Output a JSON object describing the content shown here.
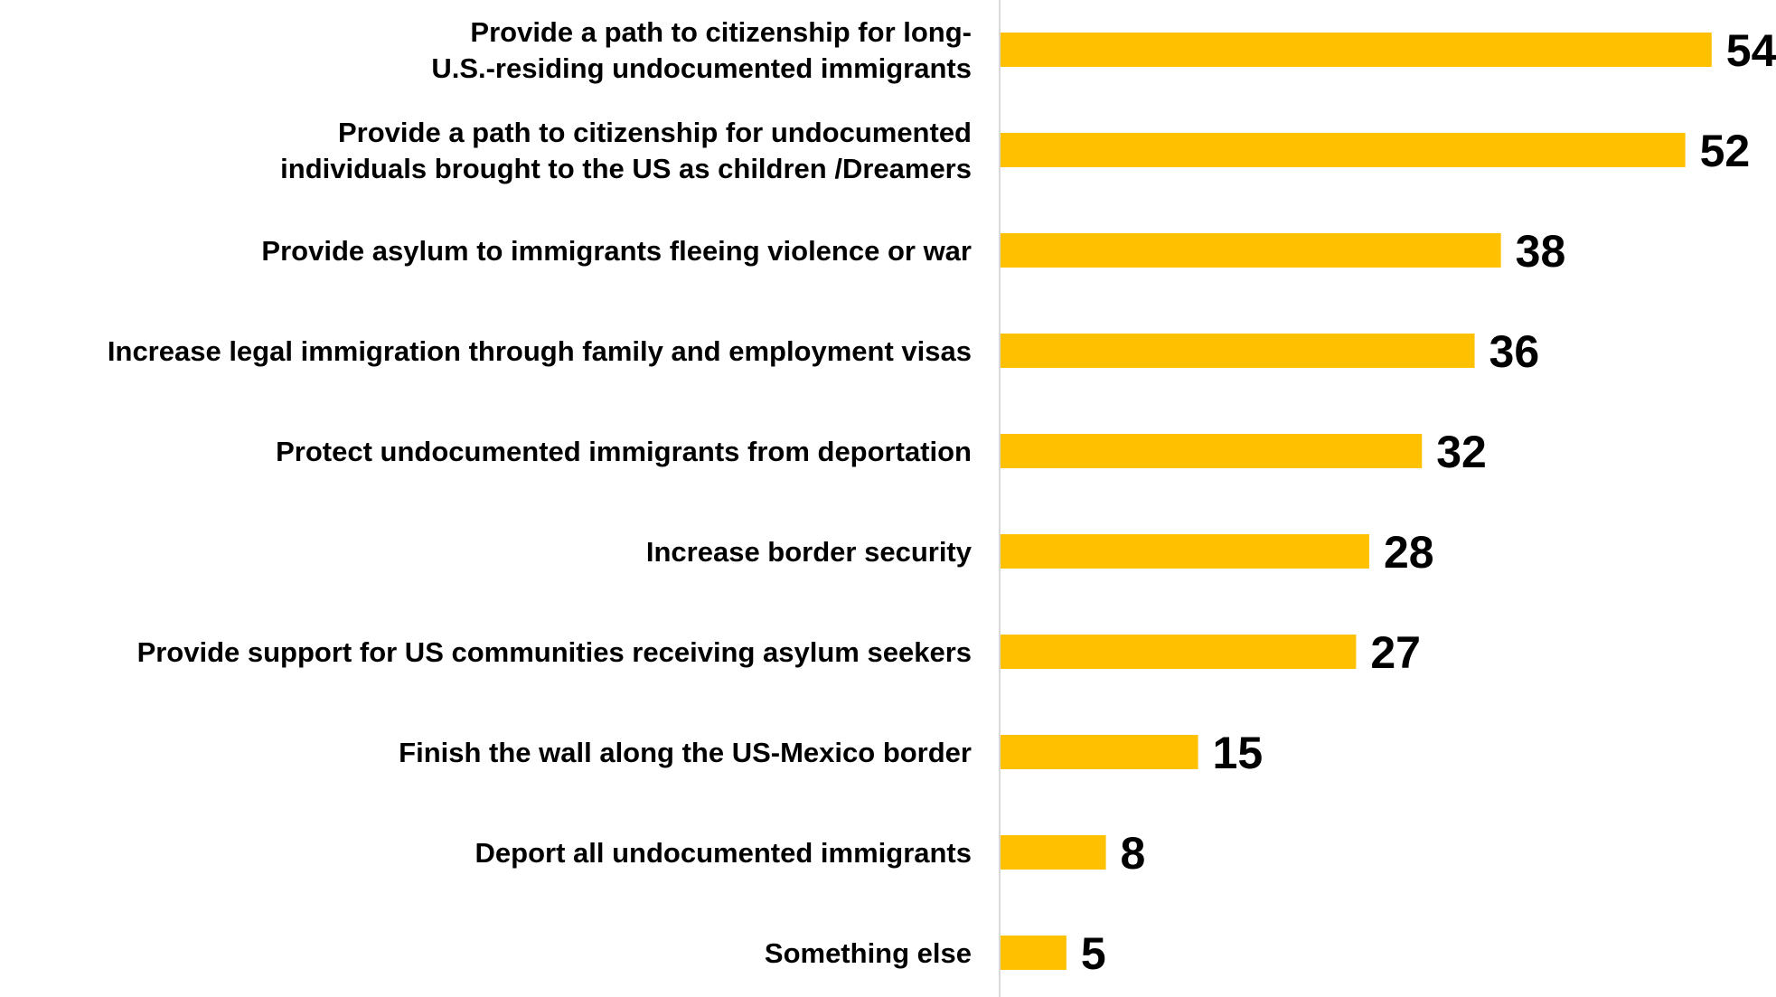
{
  "chart_data": {
    "type": "bar",
    "orientation": "horizontal",
    "categories": [
      [
        "Provide a path to citizenship for long-",
        "U.S.-residing undocumented immigrants"
      ],
      [
        "Provide a path to citizenship for undocumented",
        "individuals brought to the US as children /Dreamers"
      ],
      [
        "Provide asylum to immigrants fleeing violence or war"
      ],
      [
        "Increase legal immigration through family and employment visas"
      ],
      [
        "Protect undocumented immigrants from deportation"
      ],
      [
        "Increase border security"
      ],
      [
        "Provide support for US communities receiving asylum seekers"
      ],
      [
        "Finish the wall along the US-Mexico border"
      ],
      [
        "Deport all undocumented immigrants"
      ],
      [
        "Something else"
      ]
    ],
    "values": [
      54,
      52,
      38,
      36,
      32,
      28,
      27,
      15,
      8,
      5
    ],
    "data_labels": [
      "54",
      "52",
      "38",
      "36",
      "32",
      "28",
      "27",
      "15",
      "8",
      "5"
    ],
    "bar_color": "#FFC000",
    "axis_color": "#D9D9D9",
    "grid": false,
    "legend": "none"
  }
}
